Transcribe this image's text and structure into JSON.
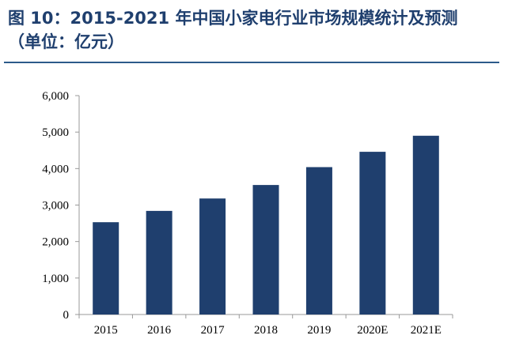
{
  "figure": {
    "title_line1": "图 10：2015-2021 年中国小家电行业市场规模统计及预测",
    "title_line2": "（单位：亿元）"
  },
  "colors": {
    "bar": "#1f3f6e",
    "title": "#1f3f6e",
    "rule": "#2c5a8a",
    "axis": "#999999"
  },
  "chart_data": {
    "type": "bar",
    "categories": [
      "2015",
      "2016",
      "2017",
      "2018",
      "2019",
      "2020E",
      "2021E"
    ],
    "values": [
      2530,
      2840,
      3180,
      3550,
      4040,
      4460,
      4900
    ],
    "ylim": [
      0,
      6000
    ],
    "yticks": [
      0,
      1000,
      2000,
      3000,
      4000,
      5000,
      6000
    ],
    "ytick_labels": [
      "0",
      "1,000",
      "2,000",
      "3,000",
      "4,000",
      "5,000",
      "6,000"
    ],
    "grid": false,
    "legend": "none"
  }
}
